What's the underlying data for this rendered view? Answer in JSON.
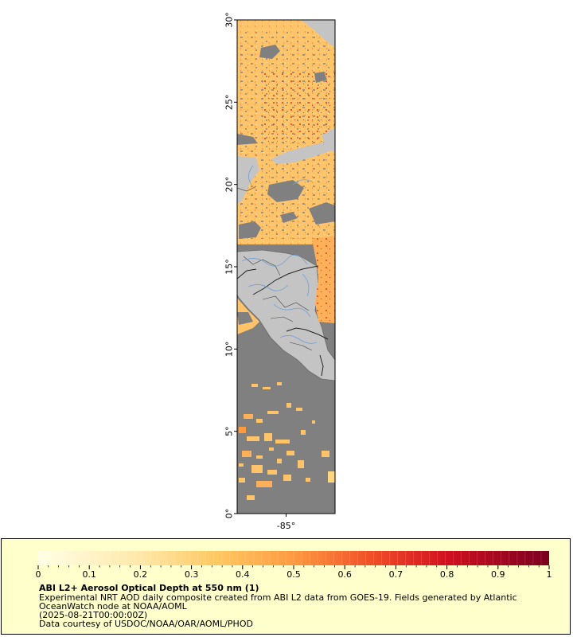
{
  "map": {
    "lat_ticks": [
      {
        "value": 30,
        "label": "30°"
      },
      {
        "value": 25,
        "label": "25°"
      },
      {
        "value": 20,
        "label": "20°"
      },
      {
        "value": 15,
        "label": "15°"
      },
      {
        "value": 10,
        "label": "10°"
      },
      {
        "value": 5,
        "label": "5°"
      },
      {
        "value": 0,
        "label": "0°"
      }
    ],
    "lon_ticks": [
      {
        "value": -85,
        "label": "-85°"
      }
    ],
    "lat_range": [
      0,
      30
    ],
    "lon_range": [
      -88,
      -82
    ],
    "colors": {
      "land": "#c4c4c4",
      "no_data": "#808080",
      "coast": "#6a6a6a",
      "border": "#222222",
      "river": "#6f9fd8"
    }
  },
  "legend": {
    "ticks": [
      "0",
      "0.1",
      "0.2",
      "0.3",
      "0.4",
      "0.5",
      "0.6",
      "0.7",
      "0.8",
      "0.9",
      "1"
    ],
    "range": [
      0,
      1
    ],
    "colors": [
      "#ffffe6",
      "#fff0c0",
      "#ffd880",
      "#ffc060",
      "#ffa040",
      "#ff7a30",
      "#f03a20",
      "#d01020",
      "#a00828",
      "#7a0020"
    ],
    "title": "ABI L2+ Aerosol Optical Depth at 550 nm (1)",
    "desc_line1": "Experimental NRT AOD daily composite created from ABI L2 data from GOES-19. Fields generated by Atlantic",
    "desc_line2": "OceanWatch node at NOAA/AOML",
    "date": "(2025-08-21T00:00:00Z)",
    "credit": "Data courtesy of USDOC/NOAA/OAR/AOML/PHOD"
  }
}
